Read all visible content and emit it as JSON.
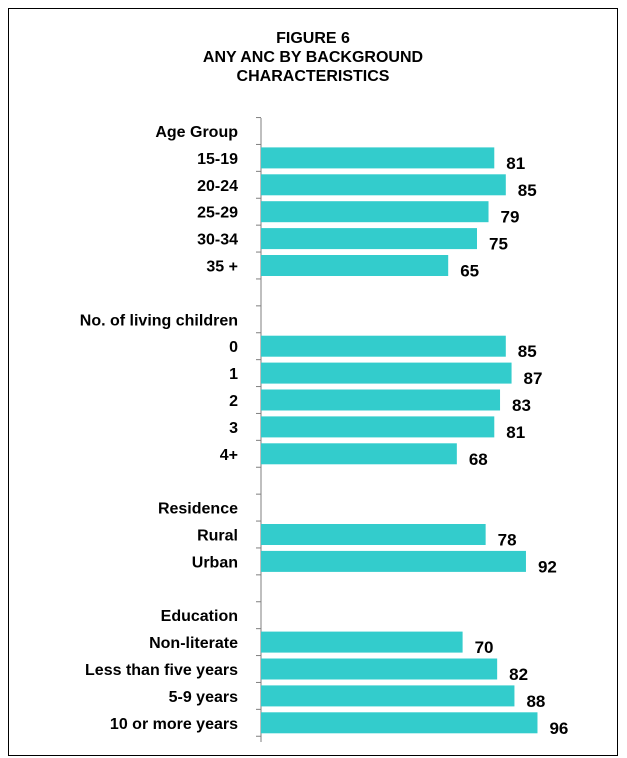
{
  "chart_data": {
    "type": "bar",
    "orientation": "horizontal",
    "title": [
      "FIGURE 6",
      "ANY ANC BY BACKGROUND",
      "CHARACTERISTICS"
    ],
    "bar_color": "#33CCCC",
    "grid": false,
    "legend": "none",
    "xlim": [
      0,
      100
    ],
    "rows": [
      {
        "label": "Age Group",
        "heading": true
      },
      {
        "label": "15-19",
        "value": 81
      },
      {
        "label": "20-24",
        "value": 85
      },
      {
        "label": "25-29",
        "value": 79
      },
      {
        "label": "30-34",
        "value": 75
      },
      {
        "label": "35 +",
        "value": 65
      },
      {
        "label": "",
        "spacer": true
      },
      {
        "label": "No. of living children",
        "heading": true
      },
      {
        "label": "0",
        "value": 85
      },
      {
        "label": "1",
        "value": 87
      },
      {
        "label": "2",
        "value": 83
      },
      {
        "label": "3",
        "value": 81
      },
      {
        "label": "4+",
        "value": 68
      },
      {
        "label": "",
        "spacer": true
      },
      {
        "label": "Residence",
        "heading": true
      },
      {
        "label": "Rural",
        "value": 78
      },
      {
        "label": "Urban",
        "value": 92
      },
      {
        "label": "",
        "spacer": true
      },
      {
        "label": "Education",
        "heading": true
      },
      {
        "label": "Non-literate",
        "value": 70
      },
      {
        "label": "Less than five years",
        "value": 82
      },
      {
        "label": "5-9 years",
        "value": 88
      },
      {
        "label": "10 or more years",
        "value": 96
      }
    ]
  }
}
